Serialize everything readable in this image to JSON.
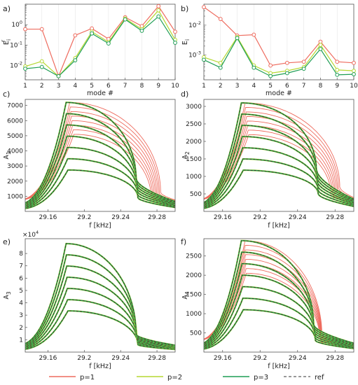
{
  "colors": {
    "p1": "#ee6b5e",
    "p2": "#b5d832",
    "p3": "#1f9e55",
    "ref": "#333333",
    "frame": "#555555"
  },
  "legend": [
    {
      "label": "p=1",
      "color": "#ee6b5e",
      "dash": false
    },
    {
      "label": "p=2",
      "color": "#b5d832",
      "dash": false
    },
    {
      "label": "p=3",
      "color": "#1f9e55",
      "dash": false
    },
    {
      "label": "ref",
      "color": "#333333",
      "dash": true
    }
  ],
  "chart_data": [
    {
      "id": "a",
      "panel_label": "a)",
      "type": "line",
      "scale": "log",
      "xlabel": "mode #",
      "ylabel": "E",
      "ylabel_sup": "r",
      "ylabel_sub": "i",
      "x": [
        1,
        2,
        3,
        4,
        5,
        6,
        7,
        8,
        9,
        10
      ],
      "xlim": [
        1,
        10
      ],
      "ylim": [
        0.002,
        10
      ],
      "xticks": [
        "1",
        "2",
        "3",
        "4",
        "5",
        "6",
        "7",
        "8",
        "9",
        "10"
      ],
      "yticks": [
        {
          "v": 0.01,
          "base": "10",
          "exp": "-2"
        },
        {
          "v": 0.1,
          "base": "10",
          "exp": "-1"
        },
        {
          "v": 1,
          "base": "10",
          "exp": "0"
        }
      ],
      "series": [
        {
          "name": "p=1",
          "values": [
            0.6,
            0.6,
            0.003,
            0.3,
            0.65,
            0.2,
            2.3,
            0.85,
            8.0,
            0.45
          ]
        },
        {
          "name": "p=2",
          "values": [
            0.009,
            0.016,
            0.003,
            0.023,
            0.45,
            0.14,
            2.0,
            0.6,
            5.0,
            0.18
          ]
        },
        {
          "name": "p=3",
          "values": [
            0.007,
            0.0085,
            0.003,
            0.018,
            0.37,
            0.12,
            1.8,
            0.5,
            2.5,
            0.13
          ]
        }
      ]
    },
    {
      "id": "b",
      "panel_label": "b)",
      "type": "line",
      "scale": "log",
      "xlabel": "mode #",
      "ylabel": "E",
      "ylabel_sup": "",
      "ylabel_sub": "i",
      "x": [
        1,
        2,
        3,
        4,
        5,
        6,
        7,
        8,
        9,
        10
      ],
      "xlim": [
        1,
        10
      ],
      "ylim": [
        0.00015,
        0.05
      ],
      "xticks": [
        "1",
        "2",
        "3",
        "4",
        "5",
        "6",
        "7",
        "8",
        "9",
        "10"
      ],
      "yticks": [
        {
          "v": 0.001,
          "base": "10",
          "exp": "-3"
        },
        {
          "v": 0.01,
          "base": "10",
          "exp": "-2"
        }
      ],
      "series": [
        {
          "name": "p=1",
          "values": [
            0.04,
            0.016,
            0.0045,
            0.0048,
            0.00045,
            0.00055,
            0.0006,
            0.0028,
            0.0006,
            0.00055
          ]
        },
        {
          "name": "p=2",
          "values": [
            0.00085,
            0.00055,
            0.004,
            0.00045,
            0.00025,
            0.0003,
            0.0004,
            0.0022,
            0.00032,
            0.0003
          ]
        },
        {
          "name": "p=3",
          "values": [
            0.0007,
            0.00038,
            0.0037,
            0.00038,
            0.0002,
            0.00025,
            0.00035,
            0.0016,
            0.00022,
            0.00023
          ]
        }
      ]
    },
    {
      "id": "c",
      "panel_label": "c)",
      "type": "line",
      "kind": "frequency-response",
      "xlabel": "f [kHz]",
      "ylabel": "A",
      "ylabel_sub": "1",
      "xlim": [
        29.135,
        29.3
      ],
      "ylim": [
        0,
        7400
      ],
      "xticks": [
        29.16,
        29.2,
        29.24,
        29.28
      ],
      "xtick_labels": [
        "29.16",
        "29.2",
        "29.24",
        "29.28"
      ],
      "yticks": [
        1000,
        2000,
        3000,
        4000,
        5000,
        6000,
        7000
      ],
      "ytick_labels": [
        "1000",
        "2000",
        "3000",
        "4000",
        "5000",
        "6000",
        "7000"
      ],
      "backbone": {
        "peak_f": 29.18,
        "peak_A": 7200,
        "nose_f": 29.262,
        "low_A": 900
      },
      "red_curves": 8,
      "family_curves": 7,
      "red_shift": {
        "a": 0.022,
        "b": 0.007
      }
    },
    {
      "id": "d",
      "panel_label": "d)",
      "type": "line",
      "kind": "frequency-response",
      "xlabel": "f [kHz]",
      "ylabel": "A",
      "ylabel_sub": "2",
      "xlim": [
        29.14,
        29.3
      ],
      "ylim": [
        0,
        3200
      ],
      "xticks": [
        29.16,
        29.2,
        29.24,
        29.28
      ],
      "xtick_labels": [
        "29.16",
        "29.2",
        "29.24",
        "29.28"
      ],
      "yticks": [
        500,
        1000,
        1500,
        2000,
        2500,
        3000
      ],
      "ytick_labels": [
        "500",
        "1000",
        "1500",
        "2000",
        "2500",
        "3000"
      ],
      "backbone": {
        "peak_f": 29.18,
        "peak_A": 3100,
        "nose_f": 29.265,
        "low_A": 500
      },
      "red_curves": 8,
      "family_curves": 7,
      "red_shift": {
        "a": 0.02,
        "b": 0.006
      }
    },
    {
      "id": "e",
      "panel_label": "e)",
      "type": "line",
      "kind": "frequency-response",
      "xlabel": "f [kHz]",
      "ylabel": "A",
      "ylabel_sub": "3",
      "multiplier": "×10",
      "multiplier_exp": "4",
      "xlim": [
        29.135,
        29.3
      ],
      "ylim": [
        0,
        92000
      ],
      "xticks": [
        29.16,
        29.2,
        29.24,
        29.28
      ],
      "xtick_labels": [
        "29.16",
        "29.2",
        "29.24",
        "29.28"
      ],
      "yticks": [
        10000,
        20000,
        30000,
        40000,
        50000,
        60000,
        70000,
        80000
      ],
      "ytick_labels": [
        "1",
        "2",
        "3",
        "4",
        "5",
        "6",
        "7",
        "8"
      ],
      "backbone": {
        "peak_f": 29.18,
        "peak_A": 88000,
        "nose_f": 29.262,
        "low_A": 6000
      },
      "red_curves": 0,
      "family_curves": 7,
      "red_shift": {
        "a": 0,
        "b": 0
      }
    },
    {
      "id": "f",
      "panel_label": "f)",
      "type": "line",
      "kind": "frequency-response",
      "xlabel": "f [kHz]",
      "ylabel": "A",
      "ylabel_sub": "4",
      "xlim": [
        29.14,
        29.3
      ],
      "ylim": [
        0,
        2950
      ],
      "xticks": [
        29.16,
        29.2,
        29.24,
        29.28
      ],
      "xtick_labels": [
        "29.16",
        "29.2",
        "29.24",
        "29.28"
      ],
      "yticks": [
        500,
        1000,
        1500,
        2000,
        2500
      ],
      "ytick_labels": [
        "500",
        "1000",
        "1500",
        "2000",
        "2500"
      ],
      "backbone": {
        "peak_f": 29.18,
        "peak_A": 2900,
        "nose_f": 29.262,
        "low_A": 300
      },
      "red_curves": 8,
      "family_curves": 7,
      "red_shift": {
        "a": 0.004,
        "b": 0.002
      }
    }
  ]
}
